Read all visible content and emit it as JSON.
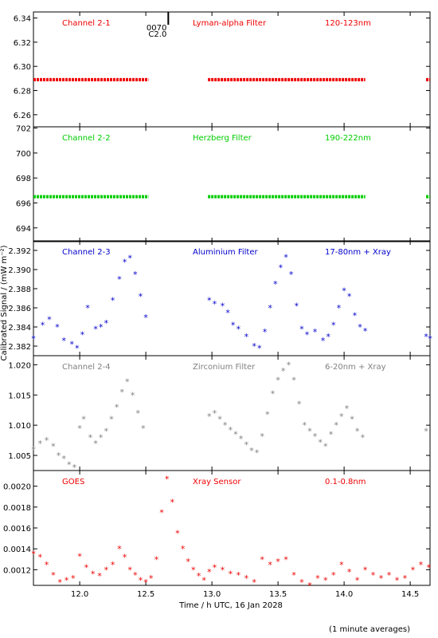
{
  "chart_data": {
    "type": "scatter",
    "xlabel": "Time / h UTC, 16 Jan 2028",
    "ylabel": "Calibrated Signal / (mW m⁻²)",
    "footnote": "(1 minute averages)",
    "xlim": [
      11.65,
      14.65
    ],
    "xticks": [
      "12.0",
      "12.5",
      "13.0",
      "13.5",
      "14.0",
      "14.5"
    ],
    "event_marker": {
      "x": 12.67,
      "labels": [
        "0070",
        "C2.0"
      ]
    },
    "panels": [
      {
        "name": "Channel 2-1",
        "filter": "Lyman-alpha Filter",
        "band": "120-123nm",
        "color": "#ee0000",
        "ylim": [
          6.25,
          6.345
        ],
        "yticks": [
          "6.26",
          "6.28",
          "6.30",
          "6.32",
          "6.34"
        ],
        "ytick_values": [
          6.26,
          6.28,
          6.3,
          6.32,
          6.34
        ],
        "segments": [
          [
            11.65,
            12.52
          ],
          [
            12.97,
            14.16
          ],
          [
            14.62,
            14.65
          ]
        ],
        "values": [
          6.289
        ]
      },
      {
        "name": "Channel 2-2",
        "filter": "Herzberg Filter",
        "band": "190-222nm",
        "color": "#00cc00",
        "ylim": [
          692.9,
          702.1
        ],
        "yticks": [
          "694",
          "696",
          "698",
          "700",
          "702"
        ],
        "ytick_values": [
          694,
          696,
          698,
          700,
          702
        ],
        "segments": [
          [
            11.65,
            12.52
          ],
          [
            12.97,
            14.16
          ],
          [
            14.62,
            14.65
          ]
        ],
        "values": [
          696.5
        ]
      },
      {
        "name": "Channel 2-3",
        "filter": "Aluminium Filter",
        "band": "17-80nm + Xray",
        "color": "#0000cc",
        "ylim": [
          2.381,
          2.393
        ],
        "yticks": [
          "2.382",
          "2.384",
          "2.386",
          "2.388",
          "2.390",
          "2.392"
        ],
        "ytick_values": [
          2.382,
          2.384,
          2.386,
          2.388,
          2.39,
          2.392
        ],
        "x": [
          11.65,
          11.72,
          11.77,
          11.83,
          11.88,
          11.94,
          11.98,
          12.02,
          12.06,
          12.12,
          12.16,
          12.2,
          12.25,
          12.3,
          12.34,
          12.38,
          12.42,
          12.46,
          12.5,
          12.98,
          13.02,
          13.08,
          13.12,
          13.16,
          13.2,
          13.26,
          13.32,
          13.36,
          13.4,
          13.44,
          13.48,
          13.52,
          13.56,
          13.6,
          13.64,
          13.68,
          13.72,
          13.78,
          13.84,
          13.88,
          13.92,
          13.96,
          14.0,
          14.04,
          14.08,
          14.12,
          14.16,
          14.62,
          14.65
        ],
        "values": [
          2.3828,
          2.3842,
          2.3848,
          2.384,
          2.3826,
          2.3822,
          2.3818,
          2.3832,
          2.386,
          2.3838,
          2.384,
          2.3844,
          2.3868,
          2.389,
          2.3908,
          2.3912,
          2.3895,
          2.3872,
          2.385,
          2.3868,
          2.3864,
          2.3862,
          2.3855,
          2.3842,
          2.3838,
          2.383,
          2.382,
          2.3818,
          2.3835,
          2.386,
          2.3885,
          2.3902,
          2.3913,
          2.3895,
          2.3862,
          2.3838,
          2.3832,
          2.3835,
          2.3826,
          2.383,
          2.3842,
          2.386,
          2.3878,
          2.3872,
          2.3852,
          2.384,
          2.3836,
          2.383,
          2.3828
        ]
      },
      {
        "name": "Channel 2-4",
        "filter": "Zirconium Filter",
        "band": "6-20nm + Xray",
        "color": "#808080",
        "ylim": [
          1.0025,
          1.0215
        ],
        "yticks": [
          "1.005",
          "1.010",
          "1.015",
          "1.020"
        ],
        "ytick_values": [
          1.005,
          1.01,
          1.015,
          1.02
        ],
        "x": [
          11.65,
          11.7,
          11.75,
          11.8,
          11.84,
          11.88,
          11.92,
          11.96,
          12.0,
          12.03,
          12.08,
          12.12,
          12.16,
          12.2,
          12.24,
          12.28,
          12.32,
          12.36,
          12.4,
          12.44,
          12.48,
          12.98,
          13.02,
          13.06,
          13.1,
          13.14,
          13.18,
          13.22,
          13.26,
          13.3,
          13.34,
          13.38,
          13.42,
          13.46,
          13.5,
          13.54,
          13.58,
          13.62,
          13.66,
          13.7,
          13.74,
          13.78,
          13.82,
          13.86,
          13.9,
          13.94,
          13.98,
          14.02,
          14.06,
          14.1,
          14.14,
          14.62
        ],
        "values": [
          1.006,
          1.007,
          1.0075,
          1.0065,
          1.005,
          1.0045,
          1.0035,
          1.003,
          1.0095,
          1.011,
          1.008,
          1.007,
          1.008,
          1.009,
          1.011,
          1.013,
          1.0155,
          1.0172,
          1.015,
          1.012,
          1.0095,
          1.0115,
          1.012,
          1.011,
          1.01,
          1.0092,
          1.0085,
          1.0078,
          1.0068,
          1.0058,
          1.0055,
          1.0082,
          1.0118,
          1.0152,
          1.0175,
          1.019,
          1.02,
          1.0175,
          1.0135,
          1.01,
          1.009,
          1.0082,
          1.0072,
          1.0065,
          1.0085,
          1.01,
          1.0115,
          1.0128,
          1.011,
          1.009,
          1.008,
          1.009
        ]
      },
      {
        "name": "GOES",
        "filter": "Xray Sensor",
        "band": "0.1-0.8nm",
        "color": "#ee0000",
        "ylim": [
          0.00105,
          0.00215
        ],
        "yticks": [
          "0.0012",
          "0.0014",
          "0.0016",
          "0.0018",
          "0.0020"
        ],
        "ytick_values": [
          0.0012,
          0.0014,
          0.0016,
          0.0018,
          0.002
        ],
        "x": [
          11.65,
          11.7,
          11.75,
          11.8,
          11.85,
          11.9,
          11.95,
          12.0,
          12.05,
          12.1,
          12.15,
          12.2,
          12.25,
          12.3,
          12.34,
          12.38,
          12.42,
          12.46,
          12.5,
          12.54,
          12.58,
          12.62,
          12.66,
          12.7,
          12.74,
          12.78,
          12.82,
          12.86,
          12.9,
          12.94,
          12.98,
          13.02,
          13.08,
          13.14,
          13.2,
          13.26,
          13.32,
          13.38,
          13.44,
          13.5,
          13.56,
          13.62,
          13.68,
          13.74,
          13.8,
          13.86,
          13.92,
          13.98,
          14.04,
          14.1,
          14.16,
          14.22,
          14.28,
          14.34,
          14.4,
          14.46,
          14.52,
          14.58,
          14.64
        ],
        "values": [
          0.00135,
          0.00132,
          0.00125,
          0.00115,
          0.00108,
          0.0011,
          0.00112,
          0.00133,
          0.00122,
          0.00116,
          0.00114,
          0.0012,
          0.00125,
          0.0014,
          0.00132,
          0.0012,
          0.00115,
          0.0011,
          0.00108,
          0.00112,
          0.0013,
          0.00175,
          0.00207,
          0.00185,
          0.00155,
          0.0014,
          0.00128,
          0.0012,
          0.00114,
          0.0011,
          0.00118,
          0.00122,
          0.0012,
          0.00116,
          0.00115,
          0.00112,
          0.00108,
          0.0013,
          0.00125,
          0.00128,
          0.0013,
          0.00115,
          0.00108,
          0.00105,
          0.00112,
          0.0011,
          0.00115,
          0.00125,
          0.00118,
          0.0011,
          0.0012,
          0.00115,
          0.00112,
          0.00115,
          0.0011,
          0.00112,
          0.0012,
          0.00125,
          0.00122
        ]
      }
    ]
  }
}
